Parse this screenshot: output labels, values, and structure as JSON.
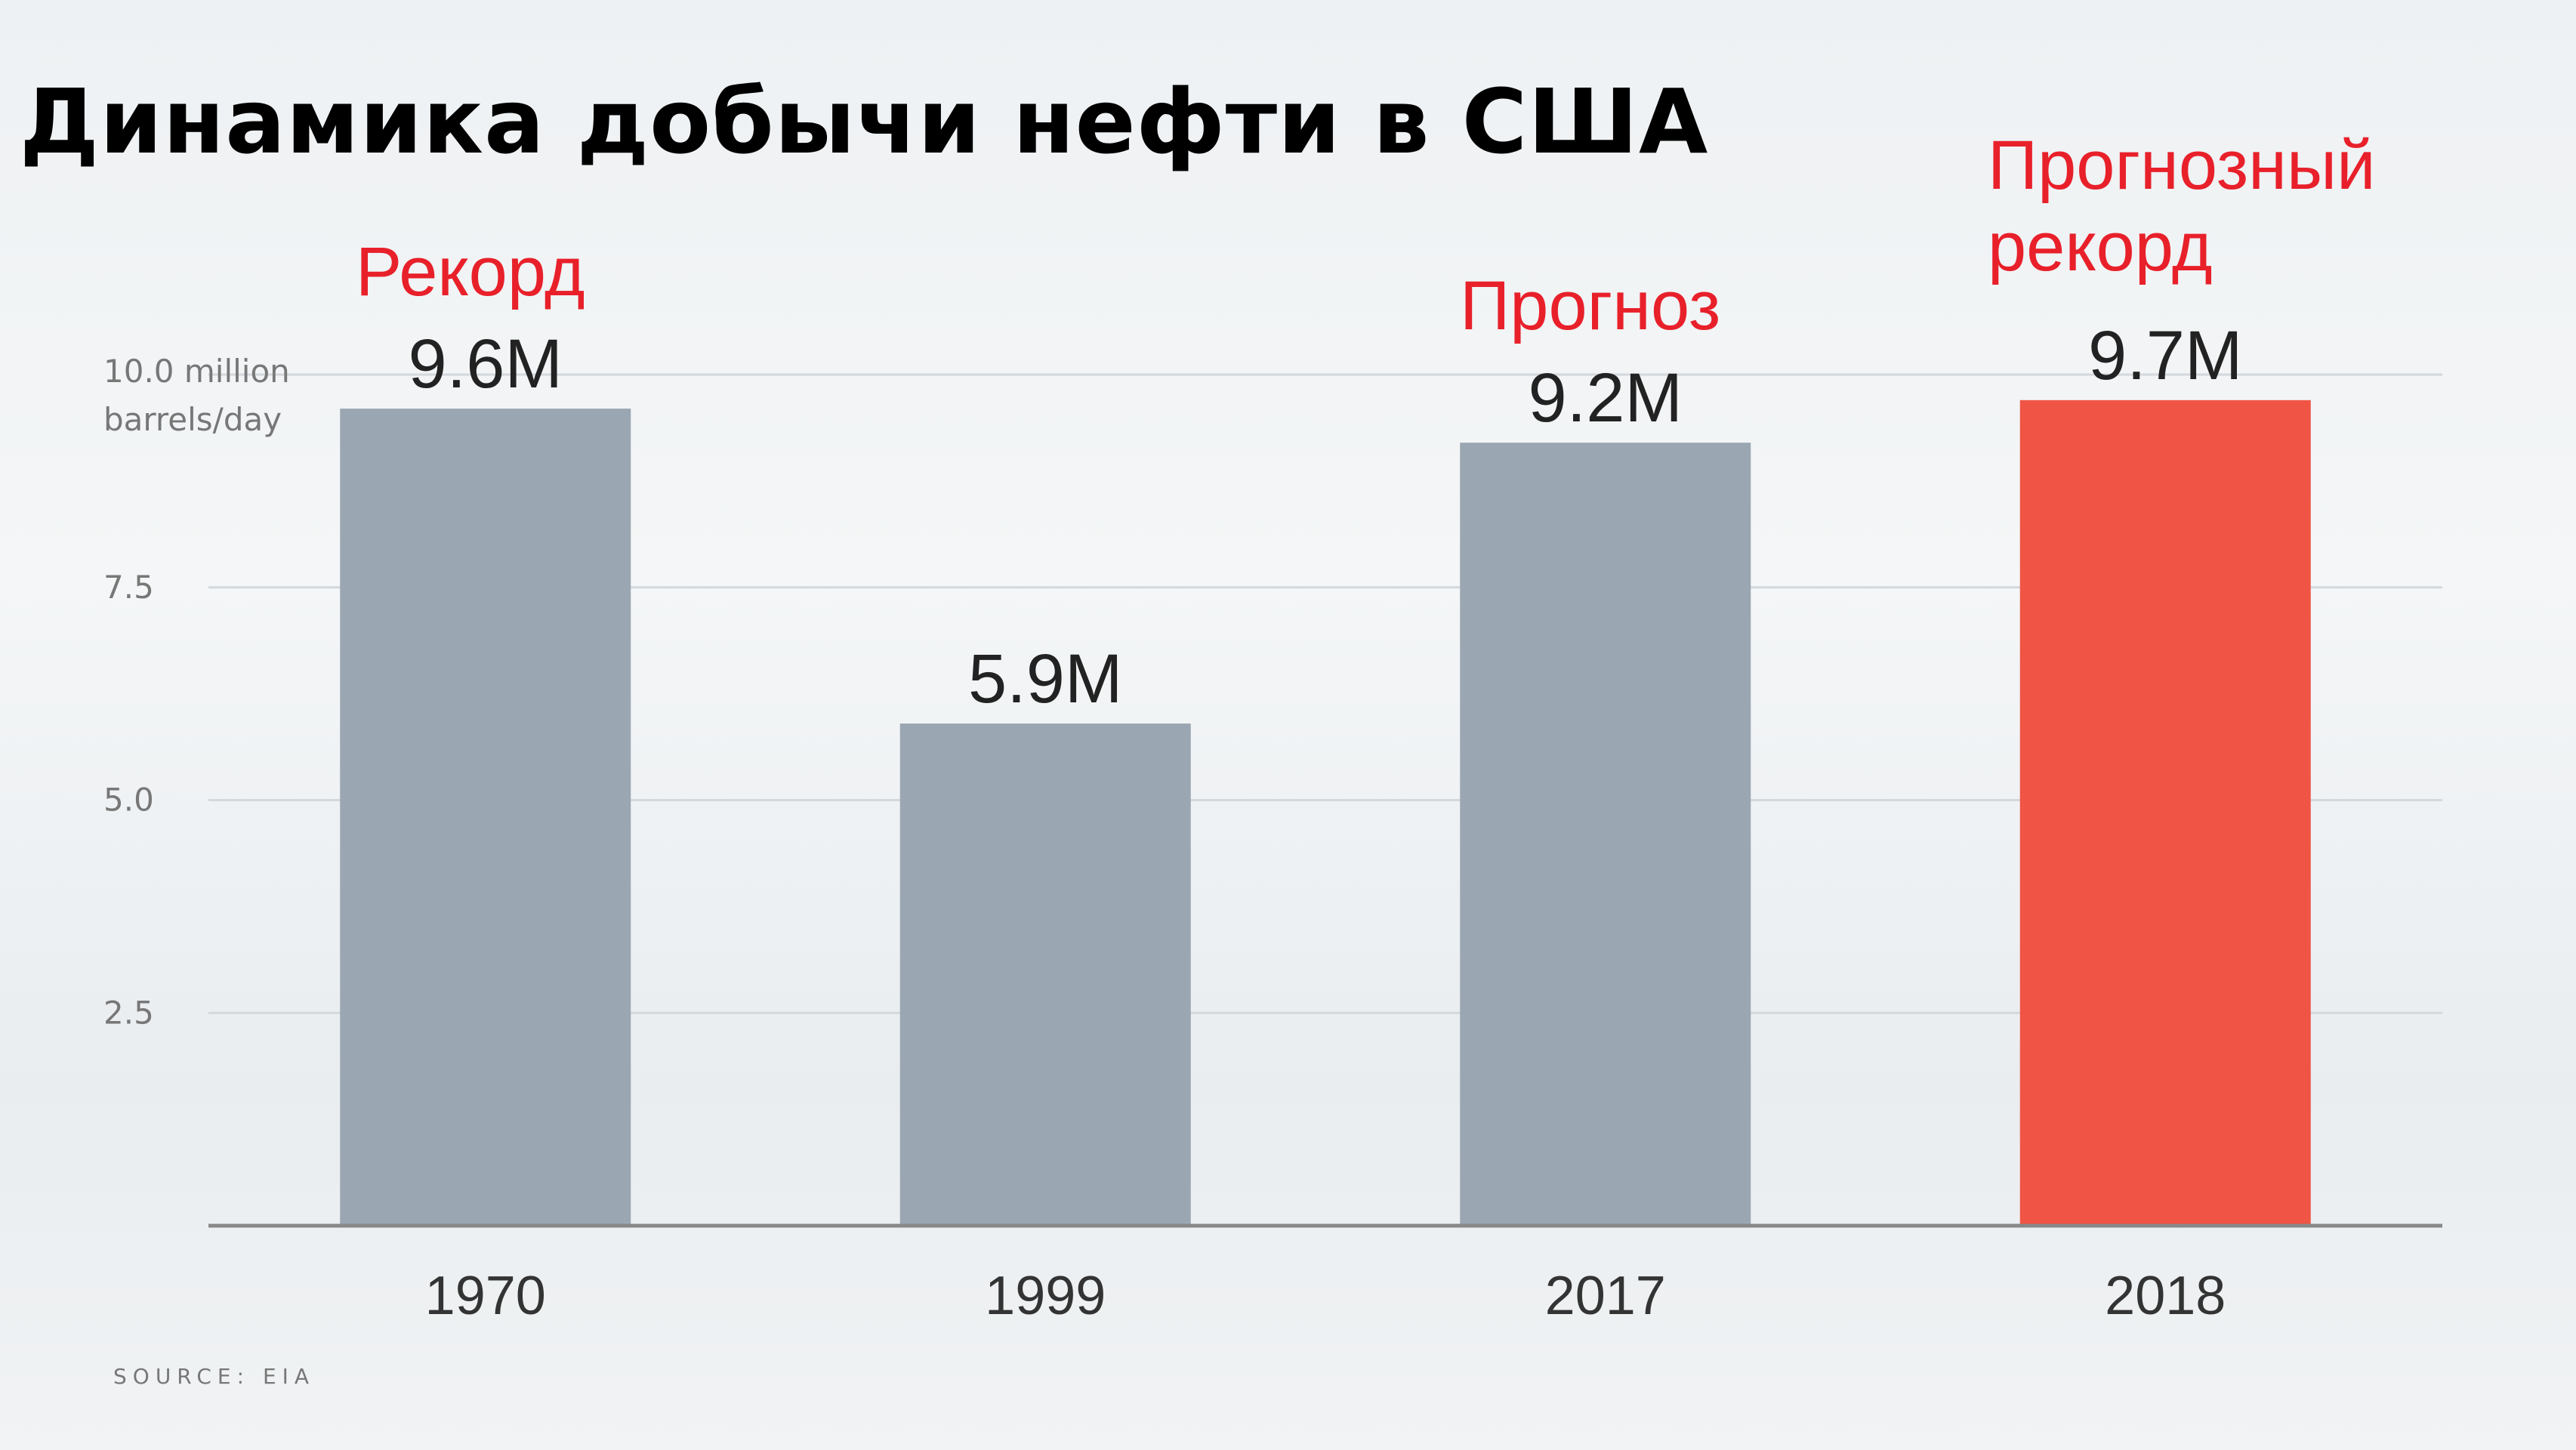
{
  "chart_data": {
    "type": "bar",
    "title": "Динамика добычи нефти в США",
    "categories": [
      "1970",
      "1999",
      "2017",
      "2018"
    ],
    "values": [
      9.6,
      5.9,
      9.2,
      9.7
    ],
    "data_labels": [
      "9.6M",
      "5.9M",
      "9.2M",
      "9.7M"
    ],
    "annotations": [
      "Рекорд",
      "",
      "Прогноз",
      "Прогнозный рекорд"
    ],
    "bar_colors": [
      "#9aa6b2",
      "#9aa6b2",
      "#9aa6b2",
      "#f05445"
    ],
    "annotation_color": "#e8202a",
    "yticks": [
      {
        "value": 2.5,
        "label": "2.5"
      },
      {
        "value": 5.0,
        "label": "5.0"
      },
      {
        "value": 7.5,
        "label": "7.5"
      },
      {
        "value": 10.0,
        "label": "10.0 million barrels/day"
      }
    ],
    "ylim": [
      0,
      10
    ],
    "grid": true,
    "source": "SOURCE: EIA"
  }
}
